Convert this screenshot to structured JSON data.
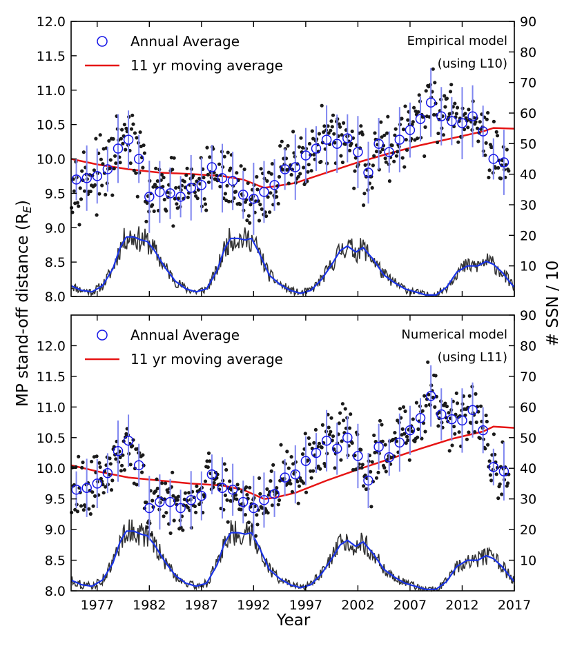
{
  "figure": {
    "xlabel": "Year",
    "ylabel_left": "MP stand-off distance (R",
    "ylabel_left_sub": "E",
    "ylabel_left_close": ")",
    "ylabel_right": "# SSN / 10",
    "x_ticks": [
      "1977",
      "1982",
      "1987",
      "1992",
      "1997",
      "2002",
      "2007",
      "2012",
      "2017"
    ],
    "x_tick_values": [
      1977,
      1982,
      1987,
      1992,
      1997,
      2002,
      2007,
      2012,
      2017
    ],
    "xlim": [
      1974.5,
      2017
    ]
  },
  "colors": {
    "annual": "#1414e6",
    "moving": "#e61414",
    "monthly": "#1a1a1a",
    "ssn_raw": "#333333",
    "ssn_smooth": "#1a33e6",
    "errorbar": "#7f86f0"
  },
  "chart_data": [
    {
      "type": "scatter",
      "title": "Empirical model (using L10)",
      "annotation_line1": "Empirical model",
      "annotation_line2": "(using L10)",
      "legend": [
        "Annual Average",
        "11 yr moving average"
      ],
      "ylim": [
        8.0,
        12.0
      ],
      "yticks": [
        8.0,
        8.5,
        9.0,
        9.5,
        10.0,
        10.5,
        11.0,
        11.5,
        12.0
      ],
      "ytick_labels": [
        "8.0",
        "8.5",
        "9.0",
        "9.5",
        "10.0",
        "10.5",
        "11.0",
        "11.5",
        "12.0"
      ],
      "ylim_right": [
        0,
        90
      ],
      "yticks_right": [
        10,
        20,
        30,
        40,
        50,
        60,
        70,
        80,
        90
      ],
      "annual_average": {
        "years": [
          1975,
          1976,
          1977,
          1978,
          1979,
          1980,
          1981,
          1982,
          1983,
          1984,
          1985,
          1986,
          1987,
          1988,
          1989,
          1990,
          1991,
          1992,
          1993,
          1994,
          1995,
          1996,
          1997,
          1998,
          1999,
          2000,
          2001,
          2002,
          2003,
          2004,
          2005,
          2006,
          2007,
          2008,
          2009,
          2010,
          2011,
          2012,
          2013,
          2014,
          2015,
          2016
        ],
        "values": [
          9.7,
          9.72,
          9.75,
          9.85,
          10.15,
          10.28,
          10.0,
          9.45,
          9.52,
          9.5,
          9.45,
          9.58,
          9.62,
          9.88,
          9.72,
          9.68,
          9.48,
          9.42,
          9.52,
          9.62,
          9.85,
          9.88,
          10.05,
          10.15,
          10.28,
          10.22,
          10.3,
          10.1,
          9.8,
          10.22,
          10.1,
          10.28,
          10.42,
          10.58,
          10.82,
          10.62,
          10.55,
          10.52,
          10.62,
          10.4,
          10.0,
          9.95
        ]
      },
      "moving_average": {
        "years": [
          1974.5,
          1977,
          1980,
          1983,
          1986,
          1989,
          1991,
          1993,
          1994,
          1996,
          1999,
          2002,
          2005,
          2008,
          2011,
          2014,
          2015,
          2017
        ],
        "values": [
          10.0,
          9.92,
          9.85,
          9.8,
          9.78,
          9.75,
          9.7,
          9.58,
          9.6,
          9.65,
          9.8,
          9.95,
          10.08,
          10.2,
          10.3,
          10.4,
          10.45,
          10.44
        ]
      }
    },
    {
      "type": "scatter",
      "title": "Numerical model (using L11)",
      "annotation_line1": "Numerical model",
      "annotation_line2": "(using L11)",
      "legend": [
        "Annual Average",
        "11 yr moving average"
      ],
      "ylim": [
        8.0,
        12.5
      ],
      "yticks": [
        8.0,
        8.5,
        9.0,
        9.5,
        10.0,
        10.5,
        11.0,
        11.5,
        12.0
      ],
      "ytick_labels": [
        "8.0",
        "8.5",
        "9.0",
        "9.5",
        "10.0",
        "10.5",
        "11.0",
        "11.5",
        "12.0"
      ],
      "ylim_right": [
        0,
        90
      ],
      "yticks_right": [
        10,
        20,
        30,
        40,
        50,
        60,
        70,
        80,
        90
      ],
      "annual_average": {
        "years": [
          1975,
          1976,
          1977,
          1978,
          1979,
          1980,
          1981,
          1982,
          1983,
          1984,
          1985,
          1986,
          1987,
          1988,
          1989,
          1990,
          1991,
          1992,
          1993,
          1994,
          1995,
          1996,
          1997,
          1998,
          1999,
          2000,
          2001,
          2002,
          2003,
          2004,
          2005,
          2006,
          2007,
          2008,
          2009,
          2010,
          2011,
          2012,
          2013,
          2014,
          2015,
          2016
        ],
        "values": [
          9.65,
          9.68,
          9.75,
          9.92,
          10.28,
          10.45,
          10.05,
          9.35,
          9.45,
          9.45,
          9.35,
          9.48,
          9.55,
          9.9,
          9.68,
          9.65,
          9.45,
          9.35,
          9.48,
          9.58,
          9.85,
          9.9,
          10.12,
          10.25,
          10.45,
          10.32,
          10.5,
          10.2,
          9.8,
          10.35,
          10.18,
          10.42,
          10.62,
          10.82,
          11.18,
          10.88,
          10.8,
          10.78,
          10.95,
          10.62,
          10.02,
          9.95
        ]
      },
      "moving_average": {
        "years": [
          1974.5,
          1977,
          1980,
          1983,
          1986,
          1989,
          1991,
          1993,
          1994,
          1996,
          1999,
          2002,
          2005,
          2008,
          2011,
          2014,
          2015,
          2017
        ],
        "values": [
          10.05,
          9.95,
          9.85,
          9.8,
          9.75,
          9.72,
          9.65,
          9.5,
          9.52,
          9.6,
          9.8,
          9.98,
          10.15,
          10.32,
          10.48,
          10.6,
          10.68,
          10.66
        ]
      }
    }
  ],
  "ssn_smoothed": {
    "years": [
      1974.5,
      1975.5,
      1976.5,
      1977.5,
      1978.5,
      1979.2,
      1979.8,
      1980.5,
      1981.2,
      1981.8,
      1982.5,
      1983.5,
      1984.5,
      1985.5,
      1986.5,
      1987.5,
      1988.5,
      1989.2,
      1989.8,
      1990.5,
      1991.2,
      1991.8,
      1992.5,
      1993.5,
      1994.5,
      1995.5,
      1996.5,
      1997.5,
      1998.5,
      1999.5,
      2000.3,
      2001.0,
      2001.8,
      2002.5,
      2003.5,
      2004.5,
      2005.5,
      2006.5,
      2007.5,
      2008.5,
      2009.5,
      2010.5,
      2011.5,
      2012.5,
      2013.5,
      2014.3,
      2015.0,
      2015.8,
      2016.5,
      2017.0
    ],
    "values": [
      3.5,
      2.0,
      1.5,
      3.5,
      9.0,
      16.0,
      19.5,
      19.5,
      18.5,
      18.0,
      15.0,
      9.5,
      5.0,
      2.5,
      1.5,
      2.5,
      8.5,
      15.5,
      19.0,
      19.0,
      18.5,
      19.0,
      14.5,
      7.0,
      4.0,
      2.0,
      1.0,
      2.0,
      5.5,
      10.5,
      15.0,
      16.5,
      14.5,
      16.0,
      12.0,
      7.0,
      4.5,
      2.5,
      1.5,
      0.5,
      0.5,
      3.0,
      8.0,
      10.0,
      10.0,
      11.5,
      10.5,
      8.0,
      5.0,
      3.0
    ]
  }
}
